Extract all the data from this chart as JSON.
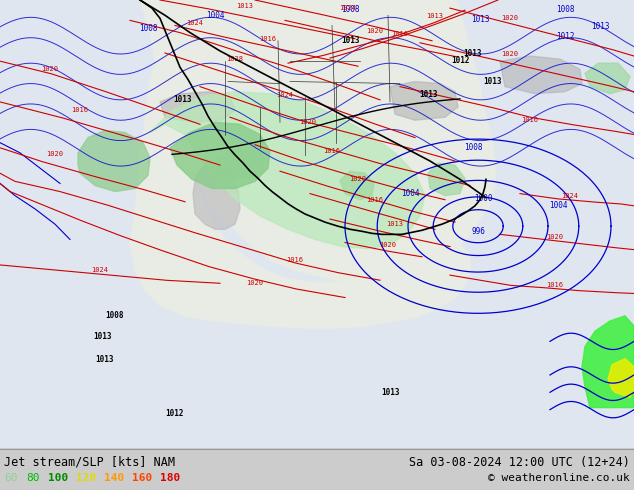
{
  "title_left": "Jet stream/SLP [kts] NAM",
  "title_right": "Sa 03-08-2024 12:00 UTC (12+24)",
  "copyright": "© weatheronline.co.uk",
  "legend_values": [
    60,
    80,
    100,
    120,
    140,
    160,
    180
  ],
  "legend_colors": [
    "#90d090",
    "#00bb00",
    "#008800",
    "#dddd00",
    "#ff9900",
    "#ff4400",
    "#dd0000"
  ],
  "bg_color": "#cccccc",
  "bottom_bar_color": "#cccccc",
  "figsize": [
    6.34,
    4.9
  ],
  "dpi": 100,
  "map_bg": "#e8e8e8",
  "ocean_color": "#d8dce8",
  "land_color": "#e8ece8",
  "jet_light_green": "#c8ecc8",
  "jet_mid_green": "#90d890",
  "jet_bright_green": "#00dd00",
  "contour_blue": "#0000cc",
  "contour_red": "#cc0000",
  "contour_black": "#000000"
}
